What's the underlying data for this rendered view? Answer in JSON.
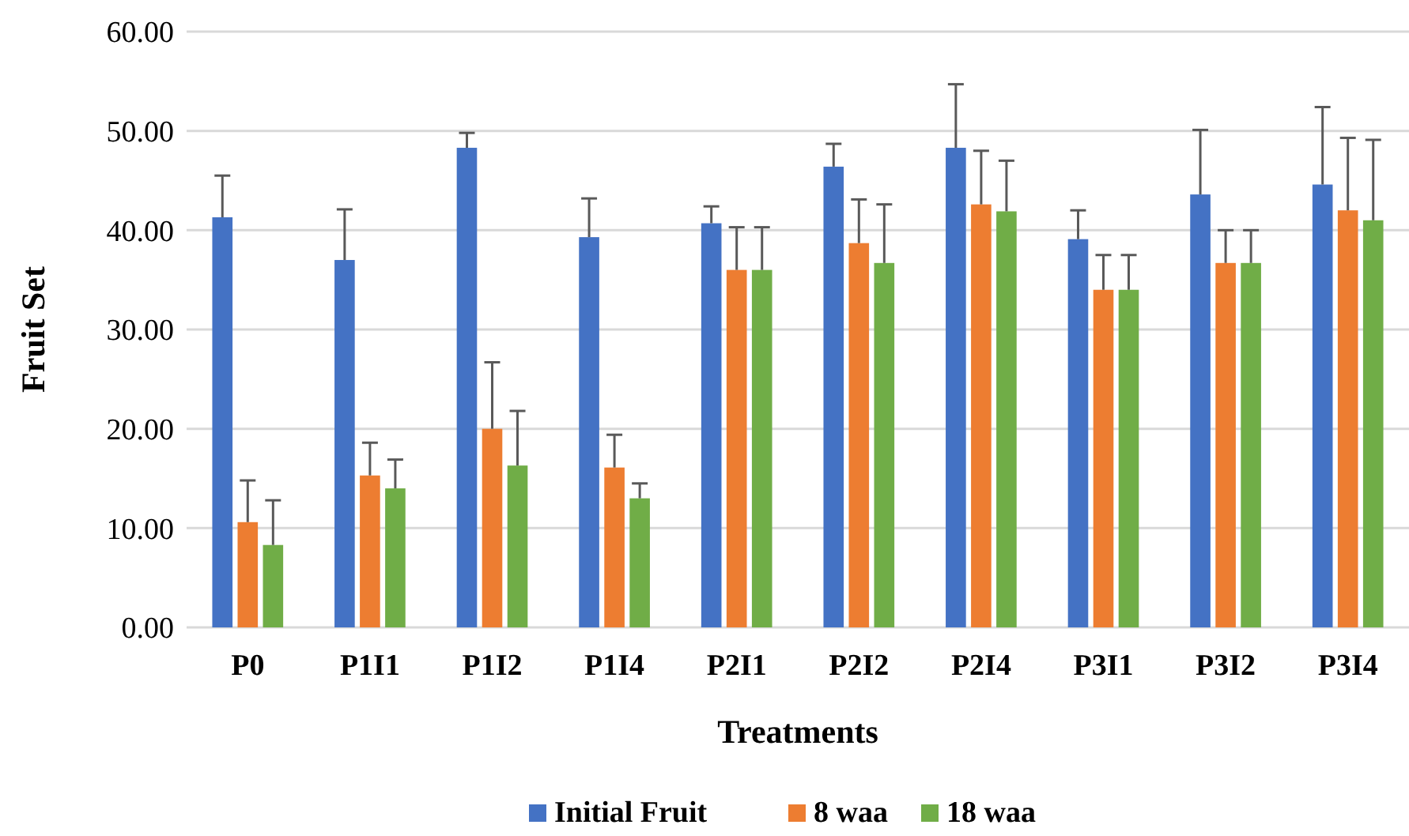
{
  "chart_data": {
    "type": "bar",
    "xlabel": "Treatments",
    "ylabel": "Fruit Set",
    "categories": [
      "P0",
      "P1I1",
      "P1I2",
      "P1I4",
      "P2I1",
      "P2I2",
      "P2I4",
      "P3I1",
      "P3I2",
      "P3I4"
    ],
    "series": [
      {
        "name": "Initial Fruit",
        "color": "#4472c4",
        "values": [
          41.3,
          37.0,
          48.3,
          39.3,
          40.7,
          46.4,
          48.3,
          39.1,
          43.6,
          44.6
        ],
        "errors": [
          [
            41.3,
            45.5
          ],
          [
            37.0,
            42.1
          ],
          [
            48.3,
            49.8
          ],
          [
            39.3,
            43.2
          ],
          [
            40.7,
            42.4
          ],
          [
            46.4,
            48.7
          ],
          [
            48.3,
            54.7
          ],
          [
            39.1,
            42.0
          ],
          [
            43.6,
            50.1
          ],
          [
            44.6,
            52.4
          ]
        ]
      },
      {
        "name": "8 waa",
        "color": "#ed7d31",
        "values": [
          10.6,
          15.3,
          20.0,
          16.1,
          36.0,
          38.7,
          42.6,
          34.0,
          36.7,
          42.0
        ],
        "errors": [
          [
            10.6,
            14.8
          ],
          [
            15.3,
            18.6
          ],
          [
            20.0,
            26.7
          ],
          [
            16.1,
            19.4
          ],
          [
            36.0,
            40.3
          ],
          [
            38.7,
            43.1
          ],
          [
            42.6,
            48.0
          ],
          [
            34.0,
            37.5
          ],
          [
            36.7,
            40.0
          ],
          [
            42.0,
            49.3
          ]
        ]
      },
      {
        "name": "18 waa",
        "color": "#70ad47",
        "values": [
          8.3,
          14.0,
          16.3,
          13.0,
          36.0,
          36.7,
          41.9,
          34.0,
          36.7,
          41.0
        ],
        "errors": [
          [
            8.3,
            12.8
          ],
          [
            14.0,
            16.9
          ],
          [
            16.3,
            21.8
          ],
          [
            13.0,
            14.5
          ],
          [
            36.0,
            40.3
          ],
          [
            36.7,
            42.6
          ],
          [
            41.9,
            47.0
          ],
          [
            34.0,
            37.5
          ],
          [
            36.7,
            40.0
          ],
          [
            41.0,
            49.1
          ]
        ]
      }
    ],
    "ylim": [
      0,
      60
    ],
    "yticks": [
      {
        "value": 0,
        "label": "0.00"
      },
      {
        "value": 10,
        "label": "10.00"
      },
      {
        "value": 20,
        "label": "20.00"
      },
      {
        "value": 30,
        "label": "30.00"
      },
      {
        "value": 40,
        "label": "40.00"
      },
      {
        "value": 50,
        "label": "50.00"
      },
      {
        "value": 60,
        "label": "60.00"
      }
    ],
    "grid": "y",
    "legend": "bottom"
  }
}
